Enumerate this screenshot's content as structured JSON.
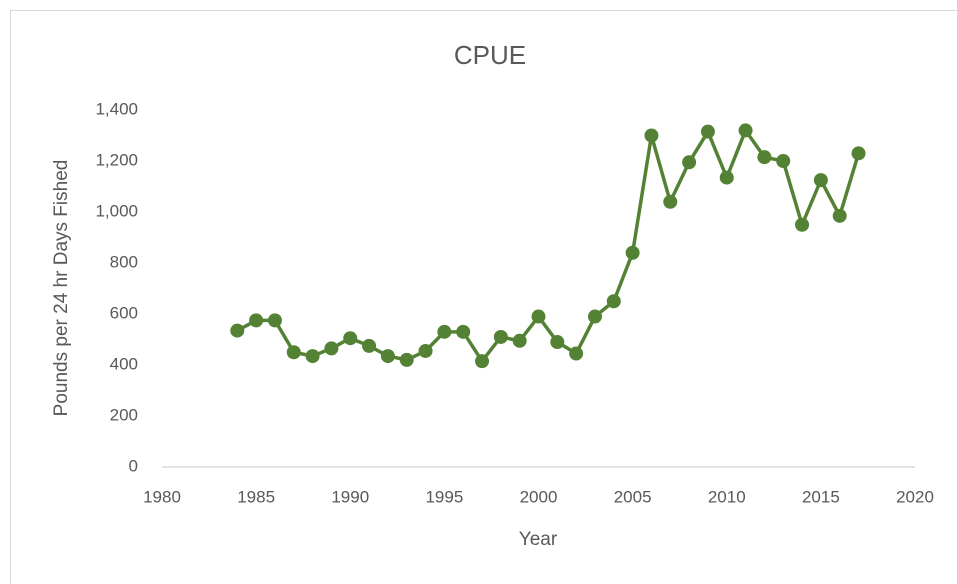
{
  "chart_data": {
    "type": "line",
    "title": "CPUE",
    "x_label": "Year",
    "y_label": "Pounds per 24 hr Days Fished",
    "x": [
      1984,
      1985,
      1986,
      1987,
      1988,
      1989,
      1990,
      1991,
      1992,
      1993,
      1994,
      1995,
      1996,
      1997,
      1998,
      1999,
      2000,
      2001,
      2002,
      2003,
      2004,
      2005,
      2006,
      2007,
      2008,
      2009,
      2010,
      2011,
      2012,
      2013,
      2014,
      2015,
      2016,
      2017
    ],
    "values": [
      535,
      575,
      575,
      450,
      435,
      465,
      505,
      475,
      435,
      420,
      455,
      530,
      530,
      415,
      510,
      495,
      590,
      490,
      445,
      590,
      650,
      840,
      1300,
      1040,
      1195,
      1315,
      1135,
      1320,
      1215,
      1200,
      950,
      1125,
      985,
      1230
    ],
    "color": "#548235",
    "xlim": [
      1980,
      2020
    ],
    "xticks": [
      1980,
      1985,
      1990,
      1995,
      2000,
      2005,
      2010,
      2015,
      2020
    ],
    "ylim": [
      0,
      1400
    ],
    "yticks": [
      0,
      200,
      400,
      600,
      800,
      {
        "value": 1000,
        "label": "1,000"
      },
      {
        "value": 1200,
        "label": "1,200"
      },
      {
        "value": 1400,
        "label": "1,400"
      }
    ],
    "grid": false
  }
}
